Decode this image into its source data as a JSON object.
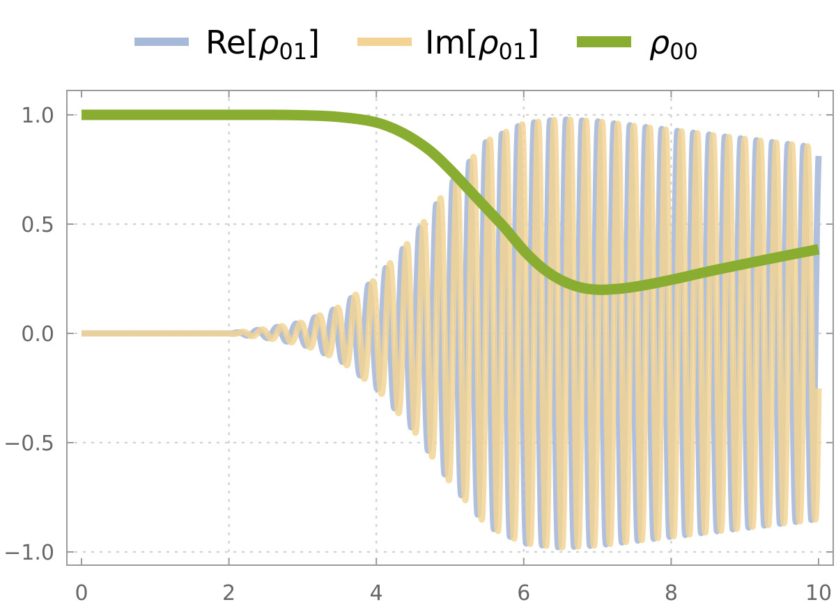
{
  "chart_data": {
    "type": "line",
    "title": "",
    "xlabel": "",
    "ylabel": "",
    "xlim": [
      0,
      10
    ],
    "ylim": [
      -1.0,
      1.0
    ],
    "x_ticks": [
      0,
      2,
      4,
      6,
      8,
      10
    ],
    "x_tick_labels": [
      "0",
      "2",
      "4",
      "6",
      "8",
      "10"
    ],
    "y_ticks": [
      -1.0,
      -0.5,
      0.0,
      0.5,
      1.0
    ],
    "y_tick_labels": [
      "−1.0",
      "−0.5",
      "0.0",
      "0.5",
      "1.0"
    ],
    "grid": "dotted at ticks",
    "legend": {
      "placement": "top"
    },
    "series": [
      {
        "name": "Re[ρ01]",
        "legend_symbol": "ρ",
        "legend_prefix": "Re[",
        "legend_sub": "01",
        "legend_suffix": "]",
        "color": "#a7b9d8",
        "style": "oscillating",
        "envelope_x": [
          0,
          2,
          2.5,
          3,
          3.5,
          4,
          4.5,
          5,
          5.5,
          6,
          6.5,
          7,
          8,
          9,
          10
        ],
        "envelope_amp": [
          0,
          0,
          0.02,
          0.05,
          0.12,
          0.25,
          0.44,
          0.68,
          0.88,
          0.96,
          0.98,
          0.97,
          0.93,
          0.89,
          0.85
        ],
        "frequency_x": [
          0,
          3,
          4,
          6,
          10
        ],
        "frequency_cycles_per_unit": [
          3.0,
          3.9,
          4.3,
          4.6,
          4.7
        ]
      },
      {
        "name": "Im[ρ01]",
        "legend_symbol": "ρ",
        "legend_prefix": "Im[",
        "legend_sub": "01",
        "legend_suffix": "]",
        "color": "#f2d394",
        "style": "oscillating",
        "phase_offset": "quarter period"
      },
      {
        "name": "ρ00",
        "legend_symbol": "ρ",
        "legend_prefix": "",
        "legend_sub": "00",
        "legend_suffix": "",
        "color": "#88ad30",
        "style": "thick",
        "x": [
          0,
          1,
          2,
          3,
          3.5,
          4,
          4.25,
          4.5,
          4.75,
          5,
          5.25,
          5.5,
          5.75,
          6,
          6.25,
          6.5,
          6.75,
          7,
          7.25,
          7.5,
          8,
          8.5,
          9,
          9.5,
          10
        ],
        "values": [
          1.0,
          1.0,
          1.0,
          0.998,
          0.99,
          0.965,
          0.935,
          0.89,
          0.83,
          0.75,
          0.66,
          0.57,
          0.48,
          0.38,
          0.3,
          0.245,
          0.212,
          0.2,
          0.203,
          0.213,
          0.245,
          0.283,
          0.318,
          0.352,
          0.385
        ]
      }
    ]
  }
}
